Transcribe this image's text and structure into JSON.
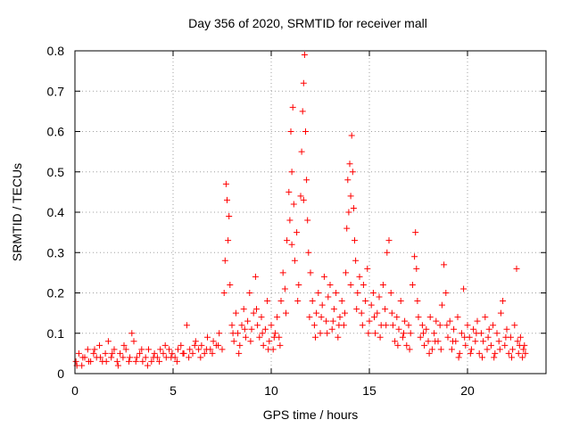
{
  "chart_data": {
    "type": "scatter",
    "title": "Day 356 of 2020, SRMTID for receiver mall",
    "xlabel": "GPS time / hours",
    "ylabel": "SRMTID / TECUs",
    "xlim": [
      0,
      24
    ],
    "ylim": [
      0,
      0.8
    ],
    "xticks": [
      0,
      5,
      10,
      15,
      20
    ],
    "yticks": [
      0,
      0.1,
      0.2,
      0.3,
      0.4,
      0.5,
      0.6,
      0.7,
      0.8
    ],
    "xtick_labels": [
      "0",
      "5",
      "10",
      "15",
      "20"
    ],
    "ytick_labels": [
      "0",
      "0.1",
      "0.2",
      "0.3",
      "0.4",
      "0.5",
      "0.6",
      "0.7",
      "0.8"
    ],
    "grid": true,
    "marker": "+",
    "marker_color": "#ff0000",
    "series": [
      {
        "name": "SRMTID",
        "points": [
          [
            0.05,
            0.03
          ],
          [
            0.2,
            0.05
          ],
          [
            0.35,
            0.02
          ],
          [
            0.5,
            0.04
          ],
          [
            0.65,
            0.06
          ],
          [
            0.8,
            0.03
          ],
          [
            0.95,
            0.05
          ],
          [
            1.1,
            0.04
          ],
          [
            1.25,
            0.07
          ],
          [
            1.4,
            0.03
          ],
          [
            1.55,
            0.05
          ],
          [
            1.7,
            0.08
          ],
          [
            1.85,
            0.04
          ],
          [
            2.0,
            0.06
          ],
          [
            2.15,
            0.03
          ],
          [
            2.3,
            0.05
          ],
          [
            2.45,
            0.04
          ],
          [
            2.6,
            0.06
          ],
          [
            2.75,
            0.03
          ],
          [
            2.9,
            0.1
          ],
          [
            3.0,
            0.08
          ],
          [
            3.15,
            0.04
          ],
          [
            3.3,
            0.05
          ],
          [
            3.45,
            0.03
          ],
          [
            3.6,
            0.04
          ],
          [
            3.75,
            0.06
          ],
          [
            3.9,
            0.03
          ],
          [
            4.05,
            0.05
          ],
          [
            4.2,
            0.04
          ],
          [
            4.35,
            0.06
          ],
          [
            4.5,
            0.05
          ],
          [
            4.65,
            0.04
          ],
          [
            4.8,
            0.06
          ],
          [
            4.95,
            0.05
          ],
          [
            5.1,
            0.04
          ],
          [
            5.25,
            0.06
          ],
          [
            5.4,
            0.07
          ],
          [
            5.55,
            0.05
          ],
          [
            5.7,
            0.12
          ],
          [
            5.85,
            0.06
          ],
          [
            6.0,
            0.05
          ],
          [
            6.15,
            0.08
          ],
          [
            6.3,
            0.06
          ],
          [
            6.45,
            0.07
          ],
          [
            6.6,
            0.05
          ],
          [
            6.75,
            0.09
          ],
          [
            6.9,
            0.06
          ],
          [
            7.05,
            0.08
          ],
          [
            7.2,
            0.07
          ],
          [
            7.35,
            0.1
          ],
          [
            7.5,
            0.06
          ],
          [
            7.6,
            0.2
          ],
          [
            7.65,
            0.28
          ],
          [
            7.7,
            0.47
          ],
          [
            7.75,
            0.43
          ],
          [
            7.8,
            0.33
          ],
          [
            7.85,
            0.39
          ],
          [
            7.9,
            0.22
          ],
          [
            8.0,
            0.12
          ],
          [
            8.1,
            0.08
          ],
          [
            8.2,
            0.15
          ],
          [
            8.3,
            0.1
          ],
          [
            8.4,
            0.07
          ],
          [
            8.5,
            0.12
          ],
          [
            8.6,
            0.16
          ],
          [
            8.7,
            0.09
          ],
          [
            8.8,
            0.13
          ],
          [
            8.9,
            0.2
          ],
          [
            9.0,
            0.11
          ],
          [
            9.1,
            0.15
          ],
          [
            9.2,
            0.24
          ],
          [
            9.3,
            0.12
          ],
          [
            9.4,
            0.09
          ],
          [
            9.5,
            0.14
          ],
          [
            9.6,
            0.07
          ],
          [
            9.7,
            0.11
          ],
          [
            9.8,
            0.18
          ],
          [
            9.9,
            0.08
          ],
          [
            10.0,
            0.12
          ],
          [
            10.1,
            0.06
          ],
          [
            10.2,
            0.1
          ],
          [
            10.3,
            0.14
          ],
          [
            10.4,
            0.09
          ],
          [
            10.5,
            0.18
          ],
          [
            10.6,
            0.25
          ],
          [
            10.7,
            0.21
          ],
          [
            10.8,
            0.33
          ],
          [
            10.9,
            0.45
          ],
          [
            10.95,
            0.38
          ],
          [
            11.0,
            0.6
          ],
          [
            11.05,
            0.5
          ],
          [
            11.1,
            0.66
          ],
          [
            11.15,
            0.42
          ],
          [
            11.2,
            0.28
          ],
          [
            11.3,
            0.35
          ],
          [
            11.4,
            0.22
          ],
          [
            11.5,
            0.44
          ],
          [
            11.55,
            0.55
          ],
          [
            11.6,
            0.65
          ],
          [
            11.65,
            0.72
          ],
          [
            11.7,
            0.79
          ],
          [
            11.75,
            0.6
          ],
          [
            11.8,
            0.48
          ],
          [
            11.85,
            0.38
          ],
          [
            11.9,
            0.3
          ],
          [
            12.0,
            0.25
          ],
          [
            12.1,
            0.18
          ],
          [
            12.2,
            0.12
          ],
          [
            12.3,
            0.15
          ],
          [
            12.4,
            0.2
          ],
          [
            12.5,
            0.1
          ],
          [
            12.6,
            0.17
          ],
          [
            12.7,
            0.24
          ],
          [
            12.8,
            0.13
          ],
          [
            12.9,
            0.19
          ],
          [
            13.0,
            0.22
          ],
          [
            13.1,
            0.11
          ],
          [
            13.2,
            0.16
          ],
          [
            13.3,
            0.2
          ],
          [
            13.4,
            0.09
          ],
          [
            13.5,
            0.14
          ],
          [
            13.6,
            0.18
          ],
          [
            13.7,
            0.12
          ],
          [
            13.8,
            0.25
          ],
          [
            13.85,
            0.36
          ],
          [
            13.9,
            0.48
          ],
          [
            13.95,
            0.4
          ],
          [
            14.0,
            0.52
          ],
          [
            14.05,
            0.44
          ],
          [
            14.1,
            0.59
          ],
          [
            14.15,
            0.5
          ],
          [
            14.2,
            0.41
          ],
          [
            14.25,
            0.33
          ],
          [
            14.3,
            0.28
          ],
          [
            14.4,
            0.2
          ],
          [
            14.5,
            0.24
          ],
          [
            14.6,
            0.15
          ],
          [
            14.7,
            0.22
          ],
          [
            14.8,
            0.18
          ],
          [
            14.9,
            0.26
          ],
          [
            15.0,
            0.13
          ],
          [
            15.1,
            0.17
          ],
          [
            15.2,
            0.2
          ],
          [
            15.3,
            0.1
          ],
          [
            15.4,
            0.15
          ],
          [
            15.5,
            0.19
          ],
          [
            15.6,
            0.12
          ],
          [
            15.7,
            0.22
          ],
          [
            15.8,
            0.16
          ],
          [
            15.9,
            0.3
          ],
          [
            16.0,
            0.33
          ],
          [
            16.1,
            0.2
          ],
          [
            16.2,
            0.12
          ],
          [
            16.3,
            0.08
          ],
          [
            16.4,
            0.14
          ],
          [
            16.5,
            0.11
          ],
          [
            16.6,
            0.18
          ],
          [
            16.7,
            0.09
          ],
          [
            16.8,
            0.13
          ],
          [
            16.9,
            0.07
          ],
          [
            17.0,
            0.12
          ],
          [
            17.1,
            0.1
          ],
          [
            17.2,
            0.22
          ],
          [
            17.3,
            0.29
          ],
          [
            17.35,
            0.35
          ],
          [
            17.4,
            0.26
          ],
          [
            17.5,
            0.14
          ],
          [
            17.6,
            0.09
          ],
          [
            17.7,
            0.12
          ],
          [
            17.8,
            0.07
          ],
          [
            17.9,
            0.11
          ],
          [
            18.0,
            0.08
          ],
          [
            18.1,
            0.14
          ],
          [
            18.2,
            0.06
          ],
          [
            18.3,
            0.1
          ],
          [
            18.4,
            0.13
          ],
          [
            18.5,
            0.08
          ],
          [
            18.6,
            0.12
          ],
          [
            18.7,
            0.17
          ],
          [
            18.8,
            0.27
          ],
          [
            18.9,
            0.2
          ],
          [
            19.0,
            0.09
          ],
          [
            19.1,
            0.13
          ],
          [
            19.2,
            0.06
          ],
          [
            19.3,
            0.11
          ],
          [
            19.4,
            0.08
          ],
          [
            19.5,
            0.14
          ],
          [
            19.6,
            0.05
          ],
          [
            19.7,
            0.1
          ],
          [
            19.8,
            0.21
          ],
          [
            19.9,
            0.07
          ],
          [
            20.0,
            0.12
          ],
          [
            20.1,
            0.09
          ],
          [
            20.2,
            0.06
          ],
          [
            20.3,
            0.11
          ],
          [
            20.4,
            0.08
          ],
          [
            20.5,
            0.13
          ],
          [
            20.6,
            0.05
          ],
          [
            20.7,
            0.1
          ],
          [
            20.8,
            0.08
          ],
          [
            20.9,
            0.14
          ],
          [
            21.0,
            0.06
          ],
          [
            21.1,
            0.11
          ],
          [
            21.2,
            0.07
          ],
          [
            21.3,
            0.12
          ],
          [
            21.4,
            0.05
          ],
          [
            21.5,
            0.1
          ],
          [
            21.6,
            0.08
          ],
          [
            21.7,
            0.15
          ],
          [
            21.8,
            0.18
          ],
          [
            21.9,
            0.07
          ],
          [
            22.0,
            0.11
          ],
          [
            22.1,
            0.05
          ],
          [
            22.2,
            0.09
          ],
          [
            22.3,
            0.06
          ],
          [
            22.4,
            0.12
          ],
          [
            22.5,
            0.26
          ],
          [
            22.55,
            0.08
          ],
          [
            22.6,
            0.05
          ],
          [
            22.7,
            0.09
          ],
          [
            22.8,
            0.04
          ],
          [
            22.9,
            0.07
          ],
          [
            22.95,
            0.05
          ],
          [
            0.1,
            0.02
          ],
          [
            0.4,
            0.04
          ],
          [
            0.7,
            0.03
          ],
          [
            1.0,
            0.06
          ],
          [
            1.3,
            0.04
          ],
          [
            1.6,
            0.03
          ],
          [
            1.9,
            0.05
          ],
          [
            2.2,
            0.02
          ],
          [
            2.5,
            0.07
          ],
          [
            2.8,
            0.04
          ],
          [
            3.1,
            0.03
          ],
          [
            3.4,
            0.06
          ],
          [
            3.7,
            0.02
          ],
          [
            4.0,
            0.04
          ],
          [
            4.3,
            0.03
          ],
          [
            4.6,
            0.07
          ],
          [
            4.9,
            0.04
          ],
          [
            5.2,
            0.03
          ],
          [
            5.5,
            0.05
          ],
          [
            5.8,
            0.04
          ],
          [
            6.1,
            0.07
          ],
          [
            6.4,
            0.04
          ],
          [
            6.7,
            0.06
          ],
          [
            7.0,
            0.05
          ],
          [
            7.3,
            0.07
          ],
          [
            8.05,
            0.1
          ],
          [
            8.35,
            0.05
          ],
          [
            8.65,
            0.11
          ],
          [
            8.95,
            0.08
          ],
          [
            9.25,
            0.16
          ],
          [
            9.55,
            0.1
          ],
          [
            9.85,
            0.06
          ],
          [
            10.15,
            0.09
          ],
          [
            10.45,
            0.07
          ],
          [
            10.75,
            0.15
          ],
          [
            11.05,
            0.32
          ],
          [
            11.35,
            0.18
          ],
          [
            11.65,
            0.43
          ],
          [
            11.95,
            0.14
          ],
          [
            12.25,
            0.09
          ],
          [
            12.55,
            0.14
          ],
          [
            12.85,
            0.1
          ],
          [
            13.15,
            0.13
          ],
          [
            13.45,
            0.12
          ],
          [
            13.75,
            0.15
          ],
          [
            14.05,
            0.22
          ],
          [
            14.35,
            0.16
          ],
          [
            14.65,
            0.12
          ],
          [
            14.95,
            0.1
          ],
          [
            15.25,
            0.14
          ],
          [
            15.55,
            0.09
          ],
          [
            15.85,
            0.12
          ],
          [
            16.15,
            0.15
          ],
          [
            16.45,
            0.07
          ],
          [
            16.75,
            0.1
          ],
          [
            17.05,
            0.06
          ],
          [
            17.45,
            0.18
          ],
          [
            17.75,
            0.1
          ],
          [
            18.05,
            0.05
          ],
          [
            18.35,
            0.08
          ],
          [
            18.65,
            0.06
          ],
          [
            18.95,
            0.12
          ],
          [
            19.25,
            0.08
          ],
          [
            19.55,
            0.04
          ],
          [
            19.85,
            0.09
          ],
          [
            20.15,
            0.05
          ],
          [
            20.45,
            0.1
          ],
          [
            20.75,
            0.04
          ],
          [
            21.05,
            0.09
          ],
          [
            21.35,
            0.04
          ],
          [
            21.65,
            0.06
          ],
          [
            21.95,
            0.09
          ],
          [
            22.25,
            0.04
          ],
          [
            22.65,
            0.07
          ],
          [
            22.85,
            0.06
          ]
        ]
      }
    ]
  }
}
